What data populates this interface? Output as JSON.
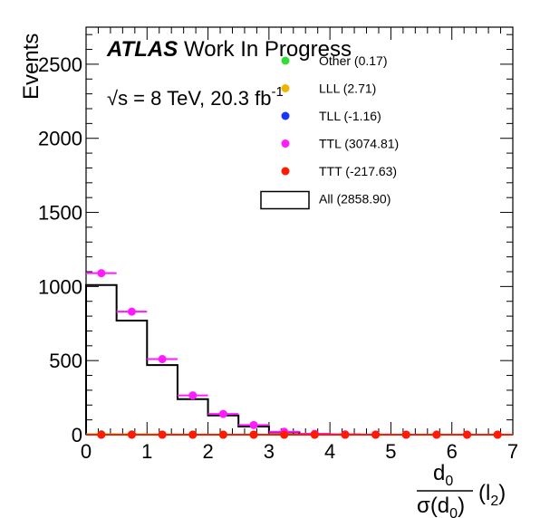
{
  "chart_data": {
    "type": "histogram-scatter",
    "ylabel": "Events",
    "xlim": [
      0,
      7
    ],
    "ylim": [
      0,
      2750
    ],
    "x_ticks": [
      0,
      1,
      2,
      3,
      4,
      5,
      6,
      7
    ],
    "y_ticks": [
      0,
      500,
      1000,
      1500,
      2000,
      2500
    ],
    "x_tick_labels": [
      "0",
      "1",
      "2",
      "3",
      "4",
      "5",
      "6",
      "7"
    ],
    "y_tick_labels": [
      "0",
      "500",
      "1000",
      "1500",
      "2000",
      "2500"
    ],
    "bin_edges": [
      0,
      0.5,
      1,
      1.5,
      2,
      2.5,
      3,
      3.5,
      4,
      4.5,
      5,
      5.5,
      6,
      6.5,
      7
    ],
    "series": [
      {
        "name": "Other (0.17)",
        "color": "#33dd33",
        "style": "points",
        "values": [
          3,
          2,
          1,
          0.5,
          0.3,
          0.2,
          0.1,
          0,
          0,
          0,
          0,
          0,
          0,
          0
        ]
      },
      {
        "name": "LLL (2.71)",
        "color": "#f0b400",
        "style": "points",
        "values": [
          1,
          1,
          0.5,
          0,
          0,
          0,
          0,
          0,
          0,
          0,
          0,
          0,
          0,
          0
        ]
      },
      {
        "name": "TLL (-1.16)",
        "color": "#1a33ff",
        "style": "points",
        "values": [
          -0.5,
          -0.3,
          -0.2,
          0,
          0,
          0,
          0,
          0,
          0,
          0,
          0,
          0,
          0,
          0
        ]
      },
      {
        "name": "TTL (3074.81)",
        "color": "#ff1aff",
        "style": "points",
        "values": [
          1090,
          830,
          510,
          265,
          140,
          65,
          20,
          6,
          2,
          1,
          0,
          0,
          0,
          0
        ]
      },
      {
        "name": "TTT (-217.63)",
        "color": "#ff1a00",
        "style": "points",
        "values": [
          -80,
          -60,
          -40,
          -20,
          -10,
          -5,
          -2,
          0,
          0,
          0,
          0,
          0,
          0,
          0
        ]
      },
      {
        "name": "All (2858.90)",
        "color": "#000000",
        "style": "step",
        "values": [
          1010,
          770,
          470,
          240,
          130,
          55,
          15,
          4,
          1,
          0,
          0,
          0,
          0,
          0
        ]
      }
    ]
  },
  "labels": {
    "atlas": "ATLAS",
    "wip": "Work In Progress",
    "energy": "√s = 8 TeV, 20.3 fb",
    "energy_sup": "-1",
    "x_num": "d",
    "x_num_sub": "0",
    "x_den": "σ(d",
    "x_den_sub": "0",
    "x_den_close": ")",
    "x_suffix": "(l",
    "x_suffix_sub": "2",
    "x_suffix_close": ")"
  }
}
